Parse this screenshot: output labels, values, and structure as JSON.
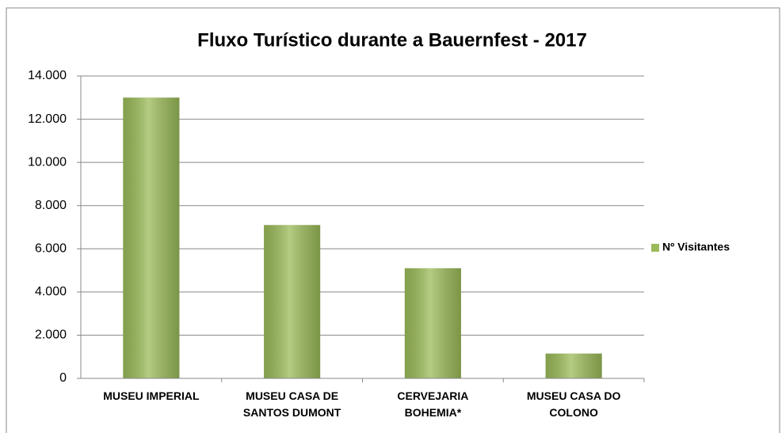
{
  "chart_data": {
    "type": "bar",
    "title": "Fluxo Turístico durante a Bauernfest - 2017",
    "categories": [
      "MUSEU IMPERIAL",
      "MUSEU CASA DE SANTOS DUMONT",
      "CERVEJARIA BOHEMIA*",
      "MUSEU CASA DO COLONO"
    ],
    "series": [
      {
        "name": "Nº Visitantes",
        "color": "#9bbb59",
        "values": [
          13000,
          7100,
          5100,
          1150
        ]
      }
    ],
    "ylim": [
      0,
      14000
    ],
    "yticks": [
      0,
      {
        "value": 2000,
        "label": "2.000"
      },
      {
        "value": 4000,
        "label": "4.000"
      },
      {
        "value": 6000,
        "label": "6.000"
      },
      {
        "value": 8000,
        "label": "8.000"
      },
      {
        "value": 10000,
        "label": "10.000"
      },
      {
        "value": 12000,
        "label": "12.000"
      },
      {
        "value": 14000,
        "label": "14.000"
      }
    ],
    "grid": true,
    "legend": "right"
  }
}
